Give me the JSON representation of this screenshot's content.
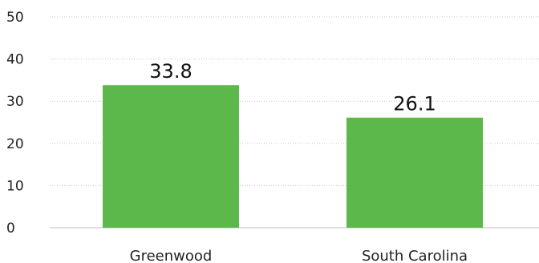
{
  "chart_data": {
    "type": "bar",
    "categories": [
      "Greenwood",
      "South Carolina"
    ],
    "values": [
      33.8,
      26.1
    ],
    "data_labels": [
      "33.8",
      "26.1"
    ],
    "yticks": [
      "0",
      "10",
      "20",
      "30",
      "40",
      "50"
    ],
    "ylim": [
      0,
      50
    ],
    "grid": true,
    "bar_color": "#5cb84a"
  }
}
